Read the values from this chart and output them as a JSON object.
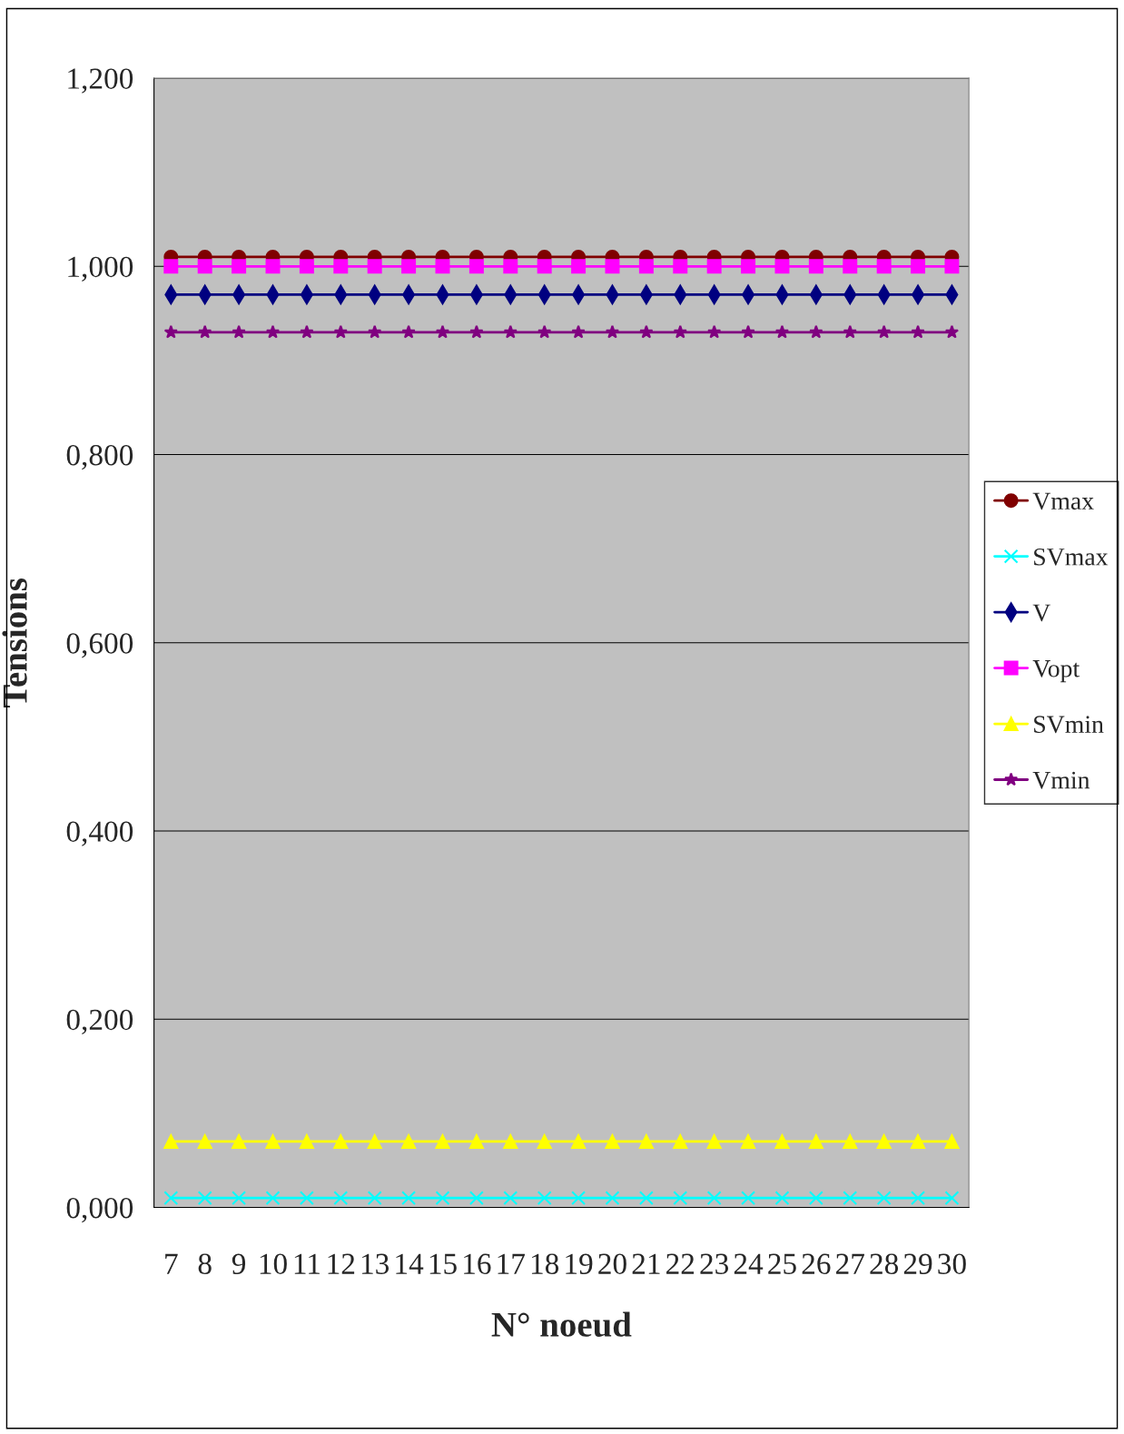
{
  "chart_data": {
    "type": "line",
    "xlabel": "N° noeud",
    "ylabel": "Tensions",
    "categories": [
      "7",
      "8",
      "9",
      "10",
      "11",
      "12",
      "13",
      "14",
      "15",
      "16",
      "17",
      "18",
      "19",
      "20",
      "21",
      "22",
      "23",
      "24",
      "25",
      "26",
      "27",
      "28",
      "29",
      "30"
    ],
    "series": [
      {
        "name": "Vmax",
        "color": "#800000",
        "marker": "circle",
        "values": [
          1.01,
          1.01,
          1.01,
          1.01,
          1.01,
          1.01,
          1.01,
          1.01,
          1.01,
          1.01,
          1.01,
          1.01,
          1.01,
          1.01,
          1.01,
          1.01,
          1.01,
          1.01,
          1.01,
          1.01,
          1.01,
          1.01,
          1.01,
          1.01
        ]
      },
      {
        "name": "SVmax",
        "color": "#00ffff",
        "marker": "cross",
        "values": [
          0.01,
          0.01,
          0.01,
          0.01,
          0.01,
          0.01,
          0.01,
          0.01,
          0.01,
          0.01,
          0.01,
          0.01,
          0.01,
          0.01,
          0.01,
          0.01,
          0.01,
          0.01,
          0.01,
          0.01,
          0.01,
          0.01,
          0.01,
          0.01
        ]
      },
      {
        "name": "V",
        "color": "#000080",
        "marker": "diamond",
        "values": [
          0.97,
          0.97,
          0.97,
          0.97,
          0.97,
          0.97,
          0.97,
          0.97,
          0.97,
          0.97,
          0.97,
          0.97,
          0.97,
          0.97,
          0.97,
          0.97,
          0.97,
          0.97,
          0.97,
          0.97,
          0.97,
          0.97,
          0.97,
          0.97
        ]
      },
      {
        "name": "Vopt",
        "color": "#ff00ff",
        "marker": "square",
        "values": [
          1.0,
          1.0,
          1.0,
          1.0,
          1.0,
          1.0,
          1.0,
          1.0,
          1.0,
          1.0,
          1.0,
          1.0,
          1.0,
          1.0,
          1.0,
          1.0,
          1.0,
          1.0,
          1.0,
          1.0,
          1.0,
          1.0,
          1.0,
          1.0
        ]
      },
      {
        "name": "SVmin",
        "color": "#ffff00",
        "marker": "triangle",
        "values": [
          0.07,
          0.07,
          0.07,
          0.07,
          0.07,
          0.07,
          0.07,
          0.07,
          0.07,
          0.07,
          0.07,
          0.07,
          0.07,
          0.07,
          0.07,
          0.07,
          0.07,
          0.07,
          0.07,
          0.07,
          0.07,
          0.07,
          0.07,
          0.07
        ]
      },
      {
        "name": "Vmin",
        "color": "#800080",
        "marker": "star",
        "values": [
          0.93,
          0.93,
          0.93,
          0.93,
          0.93,
          0.93,
          0.93,
          0.93,
          0.93,
          0.93,
          0.93,
          0.93,
          0.93,
          0.93,
          0.93,
          0.93,
          0.93,
          0.93,
          0.93,
          0.93,
          0.93,
          0.93,
          0.93,
          0.93
        ]
      }
    ],
    "ylim": [
      0,
      1.2
    ],
    "yticks": [
      {
        "value": 0,
        "label": "0,000"
      },
      {
        "value": 0.2,
        "label": "0,200"
      },
      {
        "value": 0.4,
        "label": "0,400"
      },
      {
        "value": 0.6,
        "label": "0,600"
      },
      {
        "value": 0.8,
        "label": "0,800"
      },
      {
        "value": 1.0,
        "label": "1,000"
      },
      {
        "value": 1.2,
        "label": "1,200"
      }
    ],
    "grid": "y",
    "legend": "right",
    "line_style": "solid"
  }
}
